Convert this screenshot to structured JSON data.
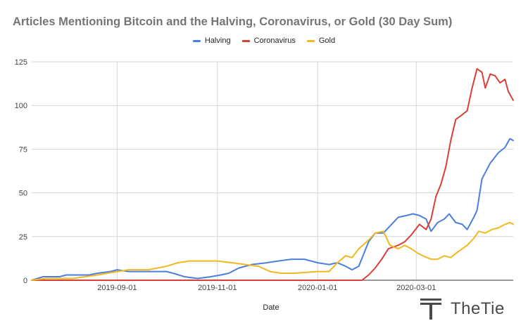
{
  "chart_data": {
    "type": "line",
    "title": "Articles Mentioning Bitcoin and the Halving, Coronavirus, or Gold (30 Day Sum)",
    "xlabel": "Date",
    "ylabel": "",
    "x_range": [
      "2019-07-11",
      "2020-04-29"
    ],
    "ylim": [
      0,
      125
    ],
    "y_ticks": [
      0,
      25,
      50,
      75,
      100,
      125
    ],
    "x_ticks": [
      "2019-09-01",
      "2019-11-01",
      "2020-01-01",
      "2020-03-01"
    ],
    "x_tick_labels": [
      "2019-09-01",
      "2019-11-01",
      "2020-01-01",
      "2020-03-01"
    ],
    "grid": true,
    "legend_position": "top-center",
    "series": [
      {
        "name": "Halving",
        "color": "#4a7fe0",
        "points": [
          [
            "2019-07-11",
            0
          ],
          [
            "2019-07-18",
            2
          ],
          [
            "2019-07-28",
            2
          ],
          [
            "2019-08-01",
            3
          ],
          [
            "2019-08-15",
            3
          ],
          [
            "2019-08-20",
            4
          ],
          [
            "2019-08-28",
            5
          ],
          [
            "2019-09-01",
            6
          ],
          [
            "2019-09-08",
            5
          ],
          [
            "2019-09-20",
            5
          ],
          [
            "2019-10-01",
            5
          ],
          [
            "2019-10-05",
            4
          ],
          [
            "2019-10-12",
            2
          ],
          [
            "2019-10-20",
            1
          ],
          [
            "2019-10-28",
            2
          ],
          [
            "2019-11-03",
            3
          ],
          [
            "2019-11-08",
            4
          ],
          [
            "2019-11-14",
            7
          ],
          [
            "2019-11-22",
            9
          ],
          [
            "2019-12-01",
            10
          ],
          [
            "2019-12-08",
            11
          ],
          [
            "2019-12-16",
            12
          ],
          [
            "2019-12-24",
            12
          ],
          [
            "2020-01-01",
            10
          ],
          [
            "2020-01-08",
            9
          ],
          [
            "2020-01-13",
            10
          ],
          [
            "2020-01-18",
            8
          ],
          [
            "2020-01-22",
            6
          ],
          [
            "2020-01-26",
            8
          ],
          [
            "2020-02-01",
            22
          ],
          [
            "2020-02-05",
            27
          ],
          [
            "2020-02-10",
            27
          ],
          [
            "2020-02-15",
            32
          ],
          [
            "2020-02-19",
            36
          ],
          [
            "2020-02-24",
            37
          ],
          [
            "2020-02-28",
            38
          ],
          [
            "2020-03-03",
            37
          ],
          [
            "2020-03-07",
            35
          ],
          [
            "2020-03-10",
            28
          ],
          [
            "2020-03-14",
            33
          ],
          [
            "2020-03-18",
            35
          ],
          [
            "2020-03-21",
            38
          ],
          [
            "2020-03-25",
            33
          ],
          [
            "2020-03-29",
            32
          ],
          [
            "2020-04-01",
            29
          ],
          [
            "2020-04-05",
            36
          ],
          [
            "2020-04-07",
            40
          ],
          [
            "2020-04-10",
            58
          ],
          [
            "2020-04-15",
            67
          ],
          [
            "2020-04-20",
            73
          ],
          [
            "2020-04-24",
            76
          ],
          [
            "2020-04-27",
            81
          ],
          [
            "2020-04-29",
            80
          ]
        ]
      },
      {
        "name": "Coronavirus",
        "color": "#d93f37",
        "points": [
          [
            "2019-07-11",
            0
          ],
          [
            "2020-01-28",
            0
          ],
          [
            "2020-02-01",
            3
          ],
          [
            "2020-02-05",
            7
          ],
          [
            "2020-02-09",
            12
          ],
          [
            "2020-02-13",
            18
          ],
          [
            "2020-02-19",
            20
          ],
          [
            "2020-02-23",
            22
          ],
          [
            "2020-02-27",
            26
          ],
          [
            "2020-03-03",
            32
          ],
          [
            "2020-03-07",
            29
          ],
          [
            "2020-03-10",
            35
          ],
          [
            "2020-03-13",
            48
          ],
          [
            "2020-03-16",
            55
          ],
          [
            "2020-03-19",
            65
          ],
          [
            "2020-03-22",
            80
          ],
          [
            "2020-03-25",
            92
          ],
          [
            "2020-03-28",
            94
          ],
          [
            "2020-04-01",
            97
          ],
          [
            "2020-04-04",
            110
          ],
          [
            "2020-04-07",
            121
          ],
          [
            "2020-04-10",
            119
          ],
          [
            "2020-04-12",
            110
          ],
          [
            "2020-04-15",
            118
          ],
          [
            "2020-04-18",
            117
          ],
          [
            "2020-04-21",
            113
          ],
          [
            "2020-04-24",
            115
          ],
          [
            "2020-04-26",
            108
          ],
          [
            "2020-04-29",
            103
          ]
        ]
      },
      {
        "name": "Gold",
        "color": "#f2b81f",
        "points": [
          [
            "2019-07-11",
            0
          ],
          [
            "2019-07-20",
            1
          ],
          [
            "2019-08-05",
            1
          ],
          [
            "2019-08-20",
            3
          ],
          [
            "2019-09-01",
            5
          ],
          [
            "2019-09-08",
            6
          ],
          [
            "2019-09-20",
            6
          ],
          [
            "2019-10-01",
            8
          ],
          [
            "2019-10-08",
            10
          ],
          [
            "2019-10-15",
            11
          ],
          [
            "2019-10-22",
            11
          ],
          [
            "2019-11-01",
            11
          ],
          [
            "2019-11-10",
            10
          ],
          [
            "2019-11-18",
            9
          ],
          [
            "2019-11-26",
            8
          ],
          [
            "2019-12-03",
            5
          ],
          [
            "2019-12-10",
            4
          ],
          [
            "2019-12-18",
            4
          ],
          [
            "2020-01-01",
            5
          ],
          [
            "2020-01-08",
            5
          ],
          [
            "2020-01-13",
            10
          ],
          [
            "2020-01-18",
            14
          ],
          [
            "2020-01-22",
            13
          ],
          [
            "2020-01-26",
            18
          ],
          [
            "2020-02-01",
            23
          ],
          [
            "2020-02-05",
            27
          ],
          [
            "2020-02-10",
            28
          ],
          [
            "2020-02-14",
            20
          ],
          [
            "2020-02-19",
            18
          ],
          [
            "2020-02-23",
            20
          ],
          [
            "2020-02-27",
            18
          ],
          [
            "2020-03-01",
            16
          ],
          [
            "2020-03-05",
            14
          ],
          [
            "2020-03-10",
            12
          ],
          [
            "2020-03-14",
            12
          ],
          [
            "2020-03-18",
            14
          ],
          [
            "2020-03-22",
            13
          ],
          [
            "2020-03-26",
            16
          ],
          [
            "2020-04-01",
            20
          ],
          [
            "2020-04-05",
            24
          ],
          [
            "2020-04-08",
            28
          ],
          [
            "2020-04-12",
            27
          ],
          [
            "2020-04-16",
            29
          ],
          [
            "2020-04-20",
            30
          ],
          [
            "2020-04-24",
            32
          ],
          [
            "2020-04-27",
            33
          ],
          [
            "2020-04-29",
            32
          ]
        ]
      }
    ]
  },
  "brand": {
    "name": "TheTie",
    "icon": "tie-logo-icon"
  }
}
